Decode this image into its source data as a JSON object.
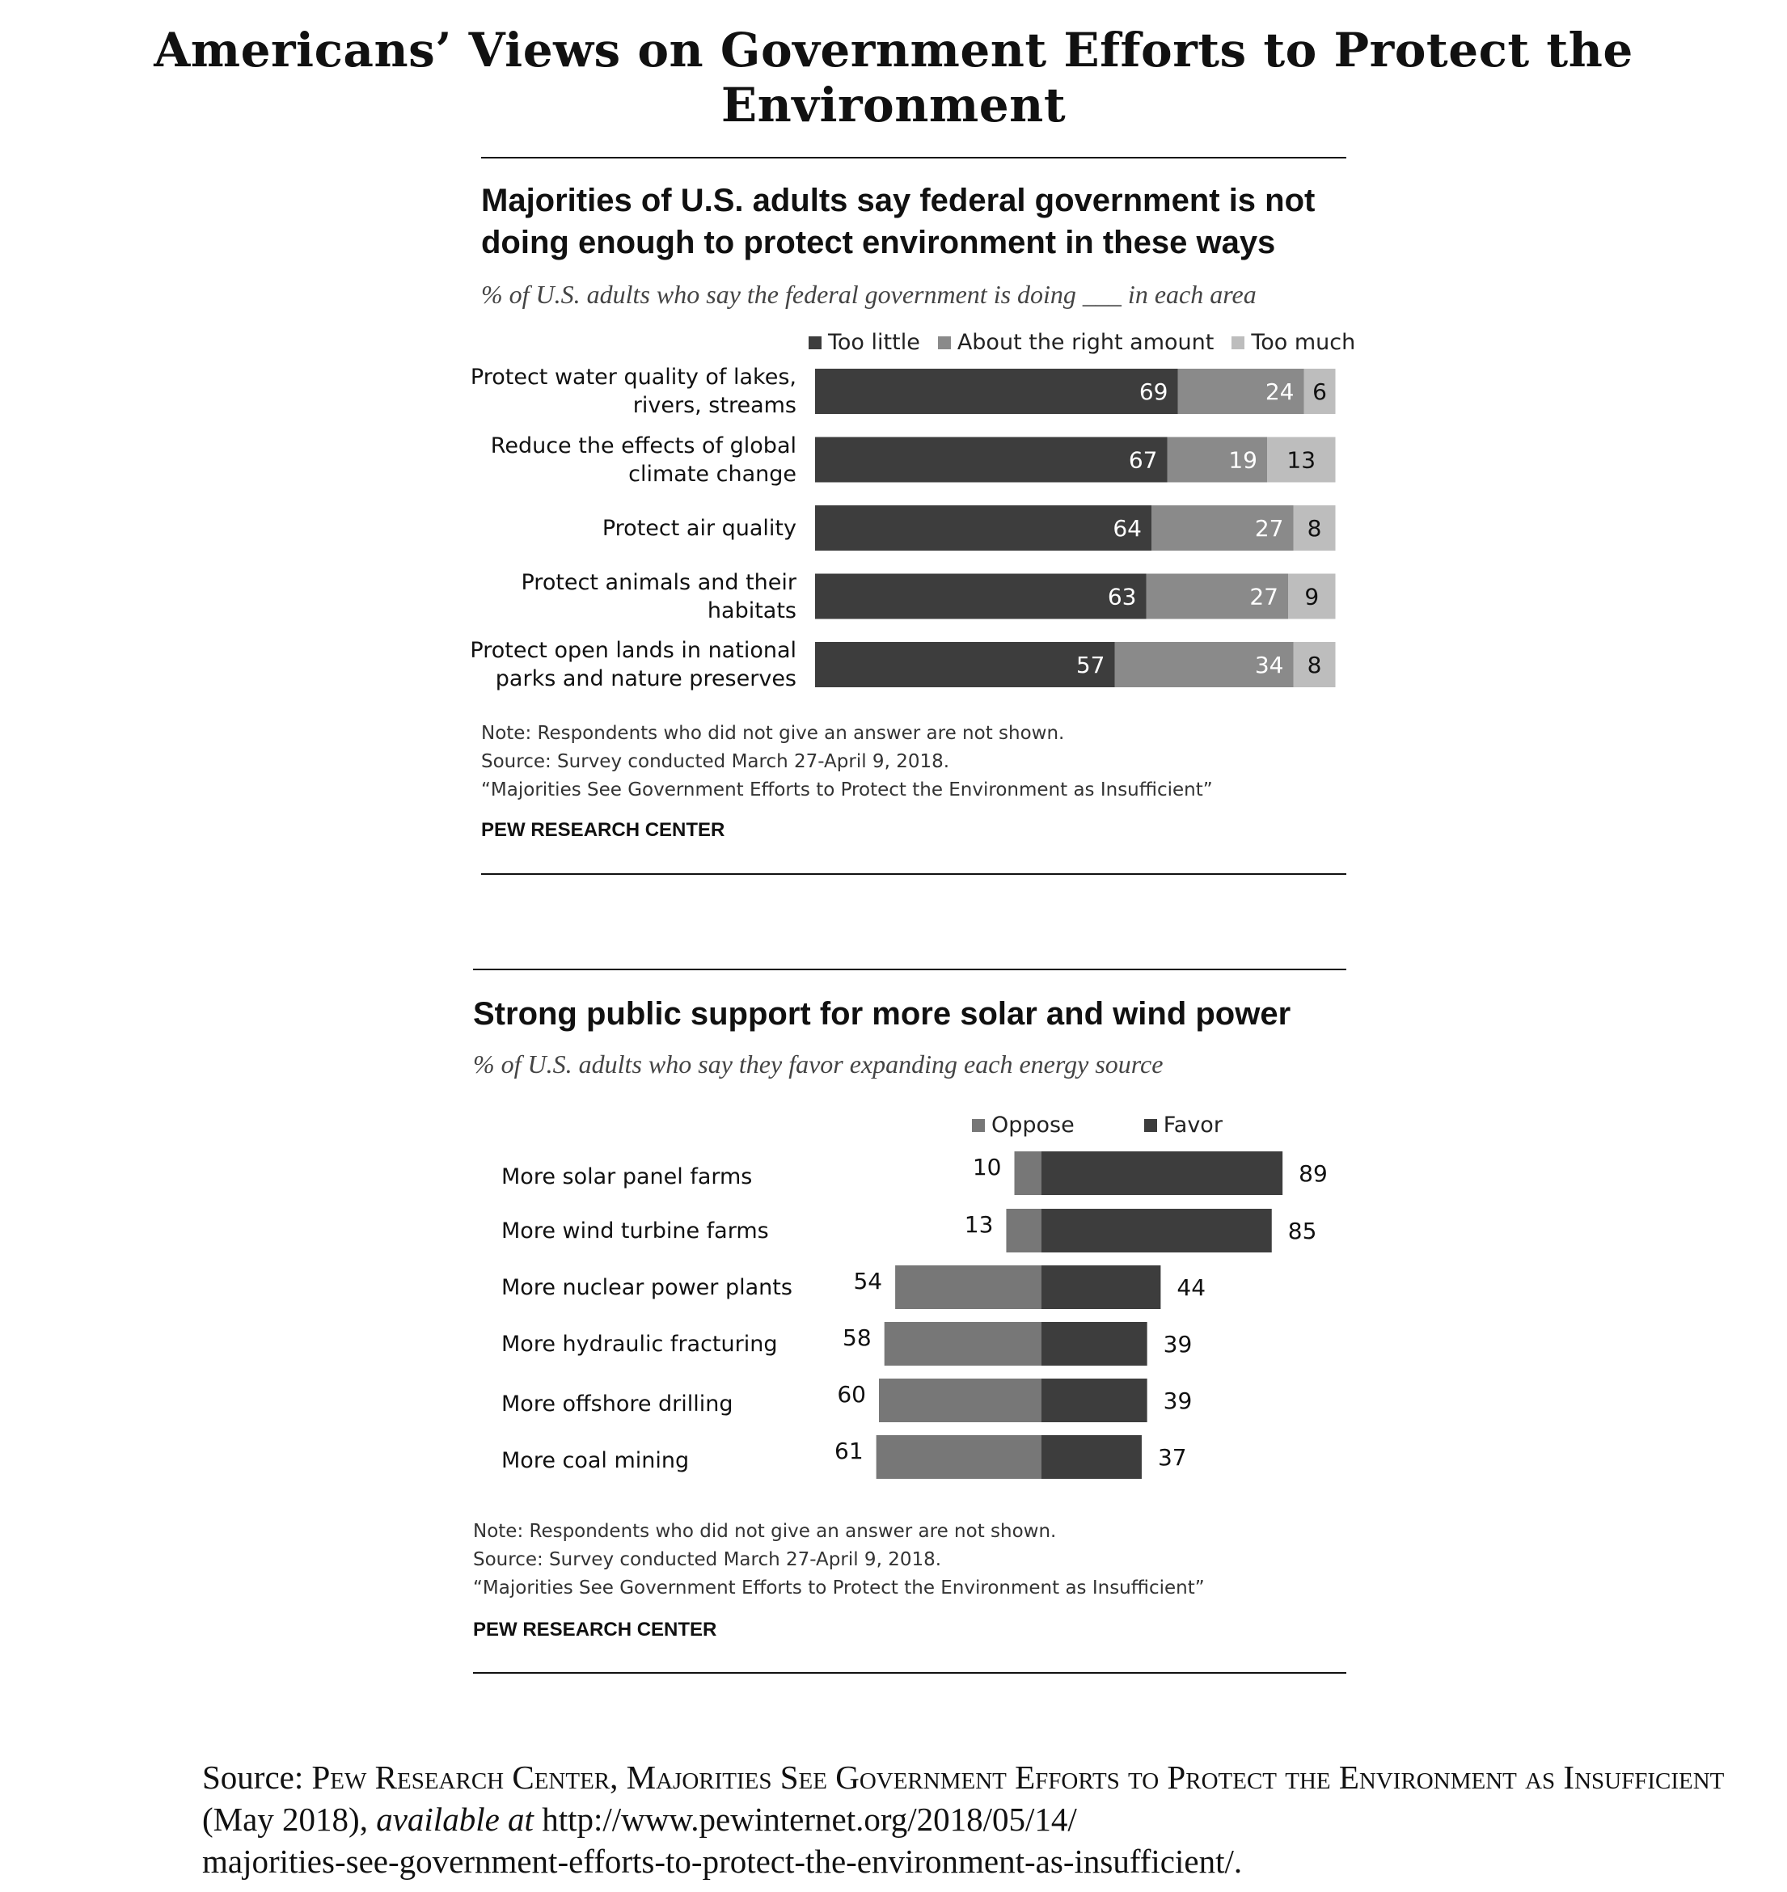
{
  "page_title": "Americans’ Views on Government Efforts to Protect the Environment",
  "colors": {
    "dark": "#3d3d3d",
    "medium": "#8a8a8a",
    "light": "#bdbdbd",
    "oppose": "#777777",
    "favor": "#3d3d3d"
  },
  "chart_data": [
    {
      "type": "bar",
      "orientation": "horizontal",
      "stacked": true,
      "title_line1": "Majorities of U.S. adults say federal government is not",
      "title_line2": "doing enough to protect environment in these ways",
      "subtitle": "% of U.S. adults who say the federal government is doing ___ in each area",
      "legend_placement": "top-right",
      "categories": [
        [
          "Protect water quality of lakes,",
          "rivers, streams"
        ],
        [
          "Reduce the effects of global",
          "climate change"
        ],
        [
          "Protect air quality"
        ],
        [
          "Protect animals and their",
          "habitats"
        ],
        [
          "Protect open lands in national",
          "parks and nature preserves"
        ]
      ],
      "series": [
        {
          "name": "Too little",
          "color": "#3d3d3d",
          "values": [
            69,
            67,
            64,
            63,
            57
          ]
        },
        {
          "name": "About the right amount",
          "color": "#8a8a8a",
          "values": [
            24,
            19,
            27,
            27,
            34
          ]
        },
        {
          "name": "Too much",
          "color": "#bdbdbd",
          "values": [
            6,
            13,
            8,
            9,
            8
          ]
        }
      ],
      "note_lines": [
        "Note: Respondents who did not give an answer are not shown.",
        "Source: Survey conducted March 27-April 9, 2018.",
        "“Majorities See Government Efforts to Protect the Environment as Insufficient”"
      ],
      "org": "PEW RESEARCH CENTER"
    },
    {
      "type": "bar",
      "orientation": "horizontal",
      "diverging": true,
      "title": "Strong public support for more solar and wind power",
      "subtitle": "% of U.S. adults who say they favor expanding each energy source",
      "legend_placement": "top",
      "categories": [
        "More solar panel farms",
        "More wind turbine farms",
        "More nuclear power plants",
        "More hydraulic fracturing",
        "More offshore drilling",
        "More coal mining"
      ],
      "series": [
        {
          "name": "Oppose",
          "color": "#777777",
          "values": [
            10,
            13,
            54,
            58,
            60,
            61
          ]
        },
        {
          "name": "Favor",
          "color": "#3d3d3d",
          "values": [
            89,
            85,
            44,
            39,
            39,
            37
          ]
        }
      ],
      "note_lines": [
        "Note: Respondents who did not give an answer are not shown.",
        "Source: Survey conducted March 27-April 9, 2018.",
        "“Majorities See Government Efforts to Protect the Environment as Insufficient”"
      ],
      "org": "PEW RESEARCH CENTER"
    }
  ],
  "source": {
    "label": "Source:",
    "org": "Pew Research Center,",
    "report": "Majorities See Government Efforts to Protect the Environment as Insufficient",
    "date": "(May 2018),",
    "available": "available at",
    "url_line1": "http://www.pewinternet.org/2018/05/14/",
    "url_line2": "majorities-see-government-efforts-to-protect-the-environment-as-insufficient/."
  }
}
